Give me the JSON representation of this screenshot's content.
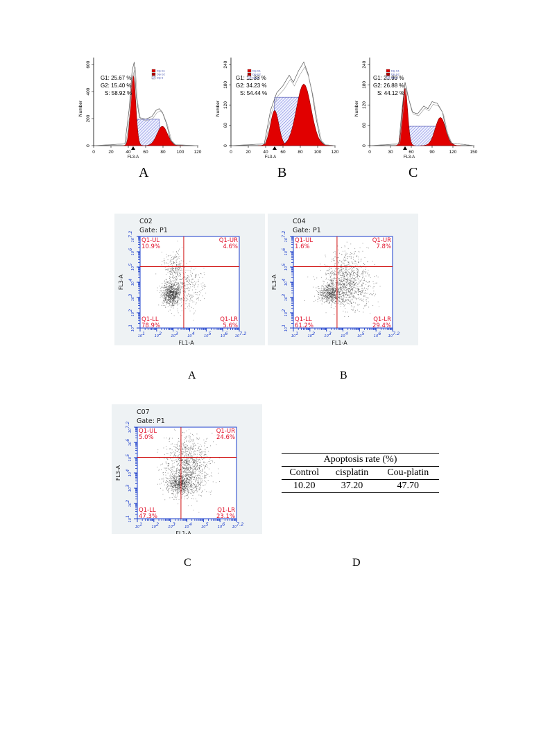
{
  "cell_cycle": {
    "panels": [
      {
        "letter": "A",
        "g1": "G1: 25.67 %",
        "g2": "G2: 15.40 %",
        "s": "S: 58.92 %",
        "y_title": "Number",
        "y_ticks": [
          "0",
          "200",
          "400",
          "600"
        ],
        "x_ticks": [
          "0",
          "20",
          "40",
          "60",
          "80",
          "100",
          "120"
        ],
        "x_title": "FL3-A",
        "legend": [
          "Dip G1",
          "Dip G2",
          "Dip S"
        ]
      },
      {
        "letter": "B",
        "g1": "G1: 11.33 %",
        "g2": "G2: 34.23 %",
        "s": "S: 54.44 %",
        "y_title": "Number",
        "y_ticks": [
          "0",
          "60",
          "120",
          "180",
          "240"
        ],
        "x_ticks": [
          "0",
          "20",
          "40",
          "60",
          "80",
          "100",
          "120"
        ],
        "x_title": "FL3-A",
        "legend": [
          "Dip G1",
          "Dip G2",
          "Dip S"
        ]
      },
      {
        "letter": "C",
        "g1": "G1: 28.99 %",
        "g2": "G2: 26.88 %",
        "s": "S: 44.12 %",
        "y_title": "Number",
        "y_ticks": [
          "0",
          "60",
          "120",
          "180",
          "240"
        ],
        "x_ticks": [
          "0",
          "30",
          "60",
          "90",
          "120",
          "150"
        ],
        "x_title": "FL3-A",
        "legend": [
          "Dip G1",
          "Dip G2",
          "Dip S"
        ]
      }
    ]
  },
  "flow": {
    "x_title": "FL1-A",
    "y_title": "FL3-A",
    "tick_labels": [
      "10^1",
      "10^2",
      "10^3",
      "10^4",
      "10^5",
      "10^6",
      "10^7.2"
    ],
    "plots": [
      {
        "letter": "A",
        "sample": "C02",
        "gate": "Gate: P1",
        "ul": "Q1-UL",
        "ul_pct": "10.9%",
        "ur": "Q1-UR",
        "ur_pct": "4.6%",
        "ll": "Q1-LL",
        "ll_pct": "78.9%",
        "lr": "Q1-LR",
        "lr_pct": "5.6%"
      },
      {
        "letter": "B",
        "sample": "C04",
        "gate": "Gate: P1",
        "ul": "Q1-UL",
        "ul_pct": "1.6%",
        "ur": "Q1-UR",
        "ur_pct": "7.8%",
        "ll": "Q1-LL",
        "ll_pct": "61.2%",
        "lr": "Q1-LR",
        "lr_pct": "29.4%"
      },
      {
        "letter": "C",
        "sample": "C07",
        "gate": "Gate: P1",
        "ul": "Q1-UL",
        "ul_pct": "5.0%",
        "ur": "Q1-UR",
        "ur_pct": "24.6%",
        "ll": "Q1-LL",
        "ll_pct": "47.3%",
        "lr": "Q1-LR",
        "lr_pct": "23.1%"
      }
    ]
  },
  "table": {
    "letter": "D",
    "header": "Apoptosis rate (%)",
    "columns": [
      "Control",
      "cisplatin",
      "Cou-platin"
    ],
    "values": [
      "10.20",
      "37.20",
      "47.70"
    ]
  },
  "chart_data": [
    {
      "type": "table",
      "title": "Apoptosis rate (%)",
      "columns": [
        "Control",
        "cisplatin",
        "Cou-platin"
      ],
      "values": [
        10.2,
        37.2,
        47.7
      ]
    },
    {
      "type": "table",
      "title": "",
      "columns": [
        "Q1-UL",
        "Q1-UR",
        "Q1-LL",
        "Q1-LR"
      ],
      "rows": [
        {
          "name": "C02",
          "values": [
            10.9,
            4.6,
            78.9,
            5.6
          ]
        },
        {
          "name": "C04",
          "values": [
            1.6,
            7.8,
            61.2,
            29.4
          ]
        },
        {
          "name": "C07",
          "values": [
            5.0,
            24.6,
            47.3,
            23.1
          ]
        }
      ]
    },
    {
      "type": "area",
      "title": "",
      "series": [
        {
          "name": "A",
          "values": {
            "G1": 25.67,
            "G2": 15.4,
            "S": 58.92
          }
        },
        {
          "name": "B",
          "values": {
            "G1": 11.33,
            "G2": 34.23,
            "S": 54.44
          }
        },
        {
          "name": "C",
          "values": {
            "G1": 28.99,
            "G2": 26.88,
            "S": 44.12
          }
        }
      ]
    }
  ]
}
